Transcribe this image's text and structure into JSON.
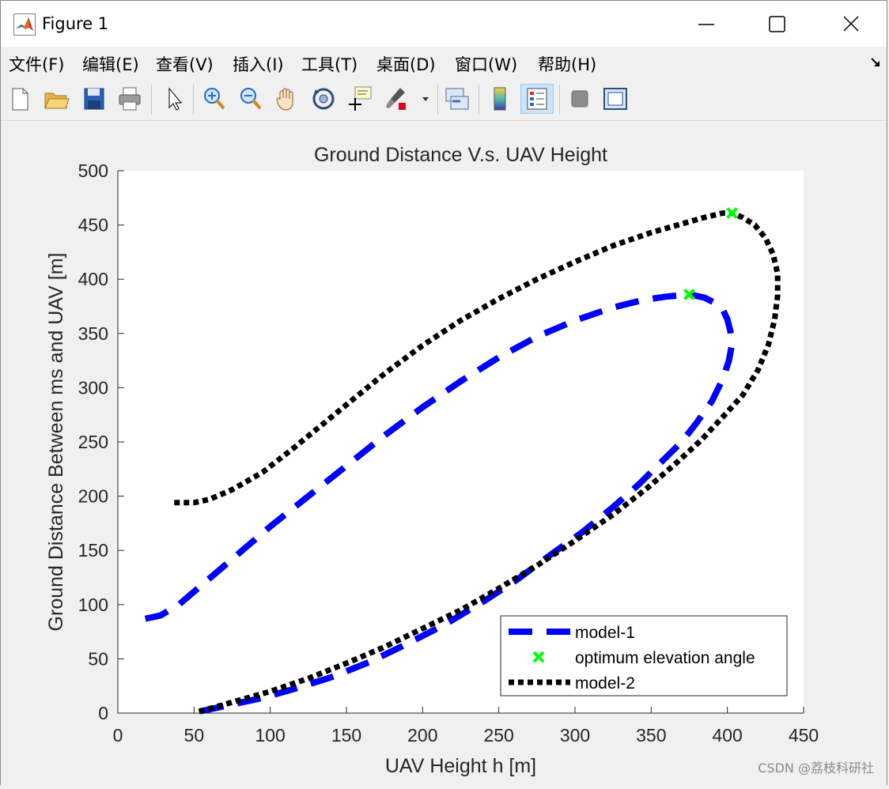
{
  "window": {
    "title": "Figure 1",
    "icon": "matlab-logo-icon"
  },
  "menu": [
    "文件(F)",
    "编辑(E)",
    "查看(V)",
    "插入(I)",
    "工具(T)",
    "桌面(D)",
    "窗口(W)",
    "帮助(H)"
  ],
  "toolbar": {
    "icons": [
      "new-figure-icon",
      "open-folder-icon",
      "save-icon",
      "print-icon",
      "pointer-icon",
      "zoom-in-icon",
      "zoom-out-icon",
      "pan-hand-icon",
      "rotate-3d-icon",
      "data-cursor-icon",
      "brush-icon",
      "link-plot-icon",
      "colorbar-icon",
      "legend-icon",
      "hide-plot-tools-icon",
      "show-plot-tools-icon"
    ]
  },
  "watermark": "CSDN @荔枝科研社",
  "colors": {
    "model1": "#0000ff",
    "model2": "#000000",
    "optimum": "#00ff00"
  },
  "chart_data": {
    "type": "line",
    "title": "Ground Distance V.s. UAV  Height",
    "xlabel": "UAV Height h [m]",
    "ylabel": "Ground Distance Between ms and UAV [m]",
    "xlim": [
      0,
      450
    ],
    "ylim": [
      0,
      500
    ],
    "xticks": [
      0,
      50,
      100,
      150,
      200,
      250,
      300,
      350,
      400,
      450
    ],
    "yticks": [
      0,
      50,
      100,
      150,
      200,
      250,
      300,
      350,
      400,
      450,
      500
    ],
    "grid": false,
    "legend_position": "bottom-right",
    "legend": [
      "model-1",
      "optimum elevation angle",
      "model-2"
    ],
    "series": [
      {
        "name": "model-1",
        "style": "dashed",
        "color": "#0000ff",
        "x": [
          18,
          28,
          40,
          55,
          75,
          100,
          125,
          150,
          175,
          200,
          225,
          250,
          275,
          300,
          325,
          345,
          360,
          375,
          385,
          392,
          397,
          400,
          402,
          403,
          401,
          397,
          390,
          380,
          370,
          357,
          342,
          325,
          305,
          285,
          262,
          240,
          215,
          190,
          165,
          140,
          115,
          95,
          75,
          62,
          52
        ],
        "y": [
          87,
          90,
          100,
          118,
          142,
          172,
          200,
          228,
          256,
          282,
          306,
          328,
          347,
          362,
          374,
          381,
          384,
          386,
          383,
          378,
          372,
          363,
          352,
          340,
          325,
          308,
          288,
          268,
          250,
          232,
          211,
          190,
          167,
          147,
          123,
          103,
          82,
          64,
          47,
          33,
          22,
          14,
          8,
          4,
          1
        ]
      },
      {
        "name": "model-2",
        "style": "dotted",
        "color": "#000000",
        "x": [
          37,
          50,
          60,
          75,
          95,
          115,
          135,
          155,
          175,
          200,
          225,
          250,
          275,
          300,
          325,
          350,
          370,
          385,
          397,
          403,
          410,
          418,
          425,
          430,
          433,
          433,
          431,
          427,
          420,
          410,
          397,
          383,
          366,
          347,
          325,
          300,
          275,
          250,
          225,
          200,
          175,
          150,
          125,
          100,
          80,
          65,
          52
        ],
        "y": [
          194,
          194,
          197,
          206,
          222,
          244,
          267,
          290,
          313,
          339,
          362,
          382,
          400,
          416,
          431,
          443,
          451,
          457,
          461,
          461,
          457,
          450,
          438,
          423,
          405,
          385,
          363,
          340,
          316,
          293,
          273,
          252,
          230,
          207,
          183,
          159,
          136,
          115,
          95,
          78,
          61,
          46,
          32,
          20,
          12,
          6,
          1
        ]
      }
    ],
    "markers": {
      "name": "optimum elevation angle",
      "symbol": "x",
      "color": "#00ff00",
      "points": [
        [
          375,
          386
        ],
        [
          403,
          461
        ]
      ]
    }
  }
}
